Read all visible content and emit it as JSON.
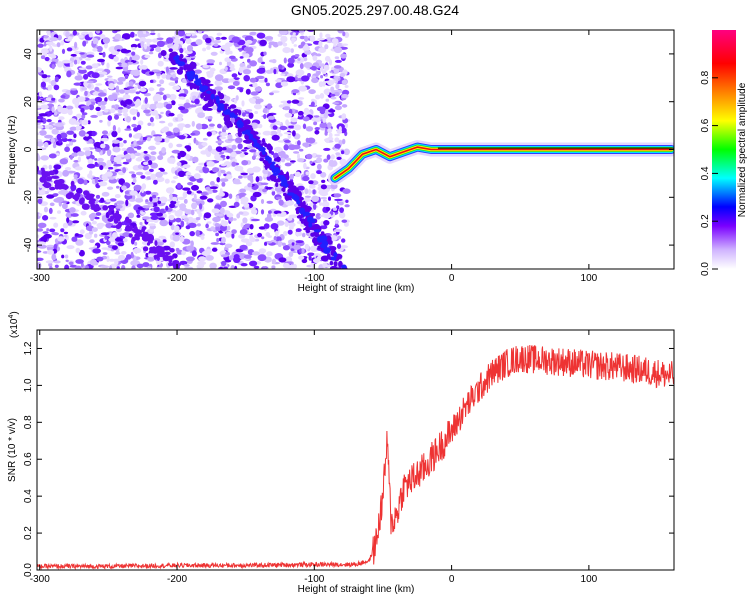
{
  "title": "GN05.2025.297.00.48.G24",
  "chart_data": [
    {
      "type": "heatmap",
      "xlabel": "Height of straight line (km)",
      "ylabel": "Frequency (Hz)",
      "xlim": [
        -302,
        162
      ],
      "ylim": [
        -50,
        50
      ],
      "xticks": [
        -300,
        -200,
        -100,
        0,
        100
      ],
      "yticks": [
        -40,
        -20,
        0,
        20,
        40
      ],
      "colorbar": {
        "label": "Normalized spectral amplitude",
        "range": [
          0,
          1
        ],
        "ticks": [
          "0.0",
          "0.2",
          "0.4",
          "0.6",
          "0.8"
        ],
        "tick_values": [
          0.0,
          0.2,
          0.4,
          0.6,
          0.8
        ],
        "colors": [
          "#ffffff",
          "#c8a8ff",
          "#7a00ff",
          "#0000ff",
          "#00ffff",
          "#00ff00",
          "#ffff00",
          "#ff8000",
          "#ff0000",
          "#ff0080"
        ]
      },
      "features": {
        "noise_region_x": [
          -302,
          -76
        ],
        "diagonal_streak_1": [
          [
            -205,
            40
          ],
          [
            -170,
            20
          ],
          [
            -140,
            2
          ],
          [
            -115,
            -20
          ],
          [
            -80,
            -50
          ]
        ],
        "diagonal_streak_2": [
          [
            -300,
            -10
          ],
          [
            -240,
            -30
          ],
          [
            -200,
            -48
          ]
        ],
        "signal_line": [
          [
            -85,
            -12
          ],
          [
            -75,
            -8
          ],
          [
            -65,
            -2
          ],
          [
            -55,
            0
          ],
          [
            -45,
            -3
          ],
          [
            -35,
            -1
          ],
          [
            -25,
            1
          ],
          [
            -15,
            0
          ],
          [
            0,
            0
          ],
          [
            160,
            0
          ]
        ]
      }
    },
    {
      "type": "line",
      "xlabel": "Height of straight line (km)",
      "ylabel": "SNR (10 * v/v)",
      "yexponent": "(x10",
      "yexponent_power": "4",
      "xlim": [
        -302,
        162
      ],
      "ylim": [
        0,
        1.3
      ],
      "xticks": [
        -300,
        -200,
        -100,
        0,
        100
      ],
      "yticks": [
        0.0,
        0.2,
        0.4,
        0.6,
        0.8,
        1.0,
        1.2
      ],
      "ytick_labels": [
        "0.0",
        "0.2",
        "0.4",
        "0.6",
        "0.8",
        "1.0",
        "1.2"
      ],
      "color": "#ee3333",
      "envelope": [
        [
          -302,
          0.02
        ],
        [
          -250,
          0.02
        ],
        [
          -200,
          0.025
        ],
        [
          -150,
          0.025
        ],
        [
          -100,
          0.03
        ],
        [
          -70,
          0.03
        ],
        [
          -60,
          0.05
        ],
        [
          -55,
          0.15
        ],
        [
          -50,
          0.4
        ],
        [
          -47,
          0.7
        ],
        [
          -44,
          0.25
        ],
        [
          -40,
          0.3
        ],
        [
          -35,
          0.45
        ],
        [
          -30,
          0.48
        ],
        [
          -20,
          0.55
        ],
        [
          -10,
          0.65
        ],
        [
          0,
          0.75
        ],
        [
          10,
          0.88
        ],
        [
          20,
          0.98
        ],
        [
          30,
          1.07
        ],
        [
          40,
          1.12
        ],
        [
          50,
          1.15
        ],
        [
          60,
          1.14
        ],
        [
          80,
          1.13
        ],
        [
          100,
          1.11
        ],
        [
          120,
          1.1
        ],
        [
          140,
          1.08
        ],
        [
          162,
          1.05
        ]
      ]
    }
  ]
}
